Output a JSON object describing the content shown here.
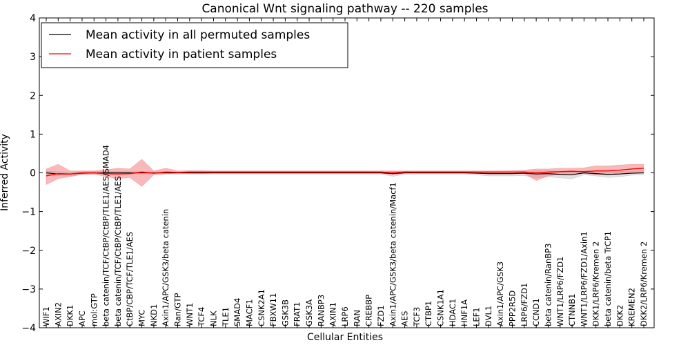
{
  "chart_data": {
    "type": "line",
    "title": "Canonical Wnt signaling pathway -- 220 samples",
    "xlabel": "Cellular Entities",
    "ylabel": "Inferred Activity",
    "ylim": [
      -4,
      4
    ],
    "yticks": [
      -4,
      -3,
      -2,
      -1,
      0,
      1,
      2,
      3,
      4
    ],
    "ytick_labels": [
      "−4",
      "−3",
      "−2",
      "−1",
      "0",
      "1",
      "2",
      "3",
      "4"
    ],
    "grid": false,
    "legend_position": "top-left",
    "categories": [
      "WIF1",
      "AXIN2",
      "DKK1",
      "APC",
      "mol:GTP",
      "beta catenin/TCF/CtBP/CtBP/TLE1/AES/SMAD4",
      "beta catenin/TCF/CtBP/CtBP/TLE1/AES",
      "CtBP/CBP/TCF/TLE1/AES",
      "MYC",
      "NKD1",
      "Axin1/APC/GSK3/beta catenin",
      "Ran/GTP",
      "WNT1",
      "TCF4",
      "NLK",
      "TLE1",
      "SMAD4",
      "MACF1",
      "CSNK2A1",
      "FBXW11",
      "GSK3B",
      "FRAT1",
      "GSK3A",
      "RANBP3",
      "AXIN1",
      "LRP6",
      "RAN",
      "CREBBP",
      "FZD1",
      "Axin1/APC/GSK3/beta catenin/Macf1",
      "AES",
      "TCF3",
      "CTBP1",
      "CSNK1A1",
      "HDAC1",
      "HNF1A",
      "LEF1",
      "DVL1",
      "Axin1/APC/GSK3",
      "PPP2R5D",
      "LRP6/FZD1",
      "CCND1",
      "beta catenin/RanBP3",
      "WNT1/LRP6/FZD1",
      "CTNNB1",
      "WNT1/LRP6/FZD1/Axin1",
      "DKK1/LRP6/Kremen 2",
      "beta catenin/beta TrCP1",
      "DKK2",
      "KREMEN2",
      "DKK2/LRP6/Kremen 2"
    ],
    "series": [
      {
        "name": "Mean activity in all permuted samples",
        "color": "#000000",
        "values": [
          0.0,
          -0.03,
          -0.03,
          -0.01,
          0.0,
          0.0,
          0.0,
          0.0,
          0.0,
          0.0,
          0.0,
          0.0,
          0.0,
          0.0,
          0.0,
          0.0,
          0.0,
          0.0,
          0.0,
          0.0,
          0.0,
          0.0,
          0.0,
          0.0,
          0.0,
          0.0,
          0.0,
          0.0,
          0.0,
          -0.02,
          0.0,
          0.0,
          0.0,
          0.0,
          0.0,
          0.0,
          -0.01,
          -0.02,
          -0.02,
          -0.02,
          -0.01,
          -0.03,
          -0.02,
          -0.04,
          -0.05,
          0.0,
          -0.02,
          -0.04,
          -0.03,
          -0.01,
          0.0
        ],
        "band_low": [
          -0.05,
          -0.08,
          -0.08,
          -0.05,
          -0.04,
          -0.03,
          -0.03,
          -0.03,
          -0.03,
          -0.03,
          -0.03,
          -0.03,
          -0.03,
          -0.03,
          -0.03,
          -0.03,
          -0.03,
          -0.03,
          -0.03,
          -0.03,
          -0.03,
          -0.03,
          -0.03,
          -0.03,
          -0.03,
          -0.03,
          -0.03,
          -0.03,
          -0.03,
          -0.09,
          -0.04,
          -0.03,
          -0.03,
          -0.03,
          -0.03,
          -0.03,
          -0.05,
          -0.08,
          -0.08,
          -0.08,
          -0.07,
          -0.13,
          -0.1,
          -0.13,
          -0.15,
          -0.05,
          -0.08,
          -0.12,
          -0.1,
          -0.06,
          -0.05
        ],
        "band_high": [
          0.05,
          0.03,
          0.02,
          0.03,
          0.04,
          0.03,
          0.03,
          0.03,
          0.03,
          0.03,
          0.03,
          0.03,
          0.03,
          0.03,
          0.03,
          0.03,
          0.03,
          0.03,
          0.03,
          0.03,
          0.03,
          0.03,
          0.03,
          0.03,
          0.03,
          0.03,
          0.03,
          0.03,
          0.03,
          0.04,
          0.04,
          0.03,
          0.03,
          0.03,
          0.03,
          0.03,
          0.03,
          0.03,
          0.03,
          0.03,
          0.04,
          0.05,
          0.05,
          0.04,
          0.03,
          0.05,
          0.04,
          0.03,
          0.04,
          0.04,
          0.05
        ]
      },
      {
        "name": "Mean activity in patient samples",
        "color": "#ff0000",
        "band_color": "#f08080",
        "values": [
          -0.08,
          -0.02,
          -0.03,
          0.0,
          0.0,
          -0.02,
          -0.03,
          -0.02,
          0.02,
          -0.01,
          0.02,
          0.01,
          0.02,
          0.02,
          0.02,
          0.02,
          0.02,
          0.02,
          0.02,
          0.02,
          0.02,
          0.02,
          0.02,
          0.02,
          0.02,
          0.02,
          0.02,
          0.02,
          0.02,
          0.0,
          0.02,
          0.02,
          0.02,
          0.02,
          0.02,
          0.02,
          0.02,
          0.02,
          0.02,
          0.02,
          0.02,
          0.0,
          0.02,
          0.03,
          0.04,
          0.03,
          0.05,
          0.05,
          0.07,
          0.1,
          0.12
        ],
        "band_low": [
          -0.3,
          -0.15,
          -0.1,
          -0.04,
          -0.03,
          -0.1,
          -0.15,
          -0.12,
          -0.35,
          -0.05,
          -0.03,
          -0.01,
          -0.02,
          -0.02,
          -0.01,
          -0.01,
          -0.01,
          -0.01,
          -0.01,
          -0.01,
          -0.01,
          -0.01,
          -0.01,
          -0.01,
          -0.01,
          -0.01,
          -0.01,
          -0.01,
          -0.01,
          -0.05,
          -0.01,
          -0.01,
          -0.01,
          -0.01,
          -0.01,
          -0.01,
          -0.01,
          -0.01,
          -0.01,
          -0.02,
          -0.02,
          -0.2,
          -0.08,
          -0.04,
          -0.03,
          -0.02,
          -0.05,
          -0.04,
          -0.02,
          0.0,
          0.02
        ],
        "band_high": [
          0.1,
          0.22,
          0.05,
          0.05,
          0.05,
          0.08,
          0.12,
          0.1,
          0.35,
          0.05,
          0.12,
          0.05,
          0.06,
          0.06,
          0.05,
          0.05,
          0.05,
          0.05,
          0.05,
          0.05,
          0.05,
          0.05,
          0.05,
          0.05,
          0.05,
          0.05,
          0.05,
          0.05,
          0.05,
          0.05,
          0.05,
          0.05,
          0.05,
          0.05,
          0.05,
          0.05,
          0.05,
          0.05,
          0.05,
          0.06,
          0.07,
          0.1,
          0.1,
          0.12,
          0.12,
          0.13,
          0.18,
          0.18,
          0.2,
          0.22,
          0.22
        ]
      }
    ]
  }
}
